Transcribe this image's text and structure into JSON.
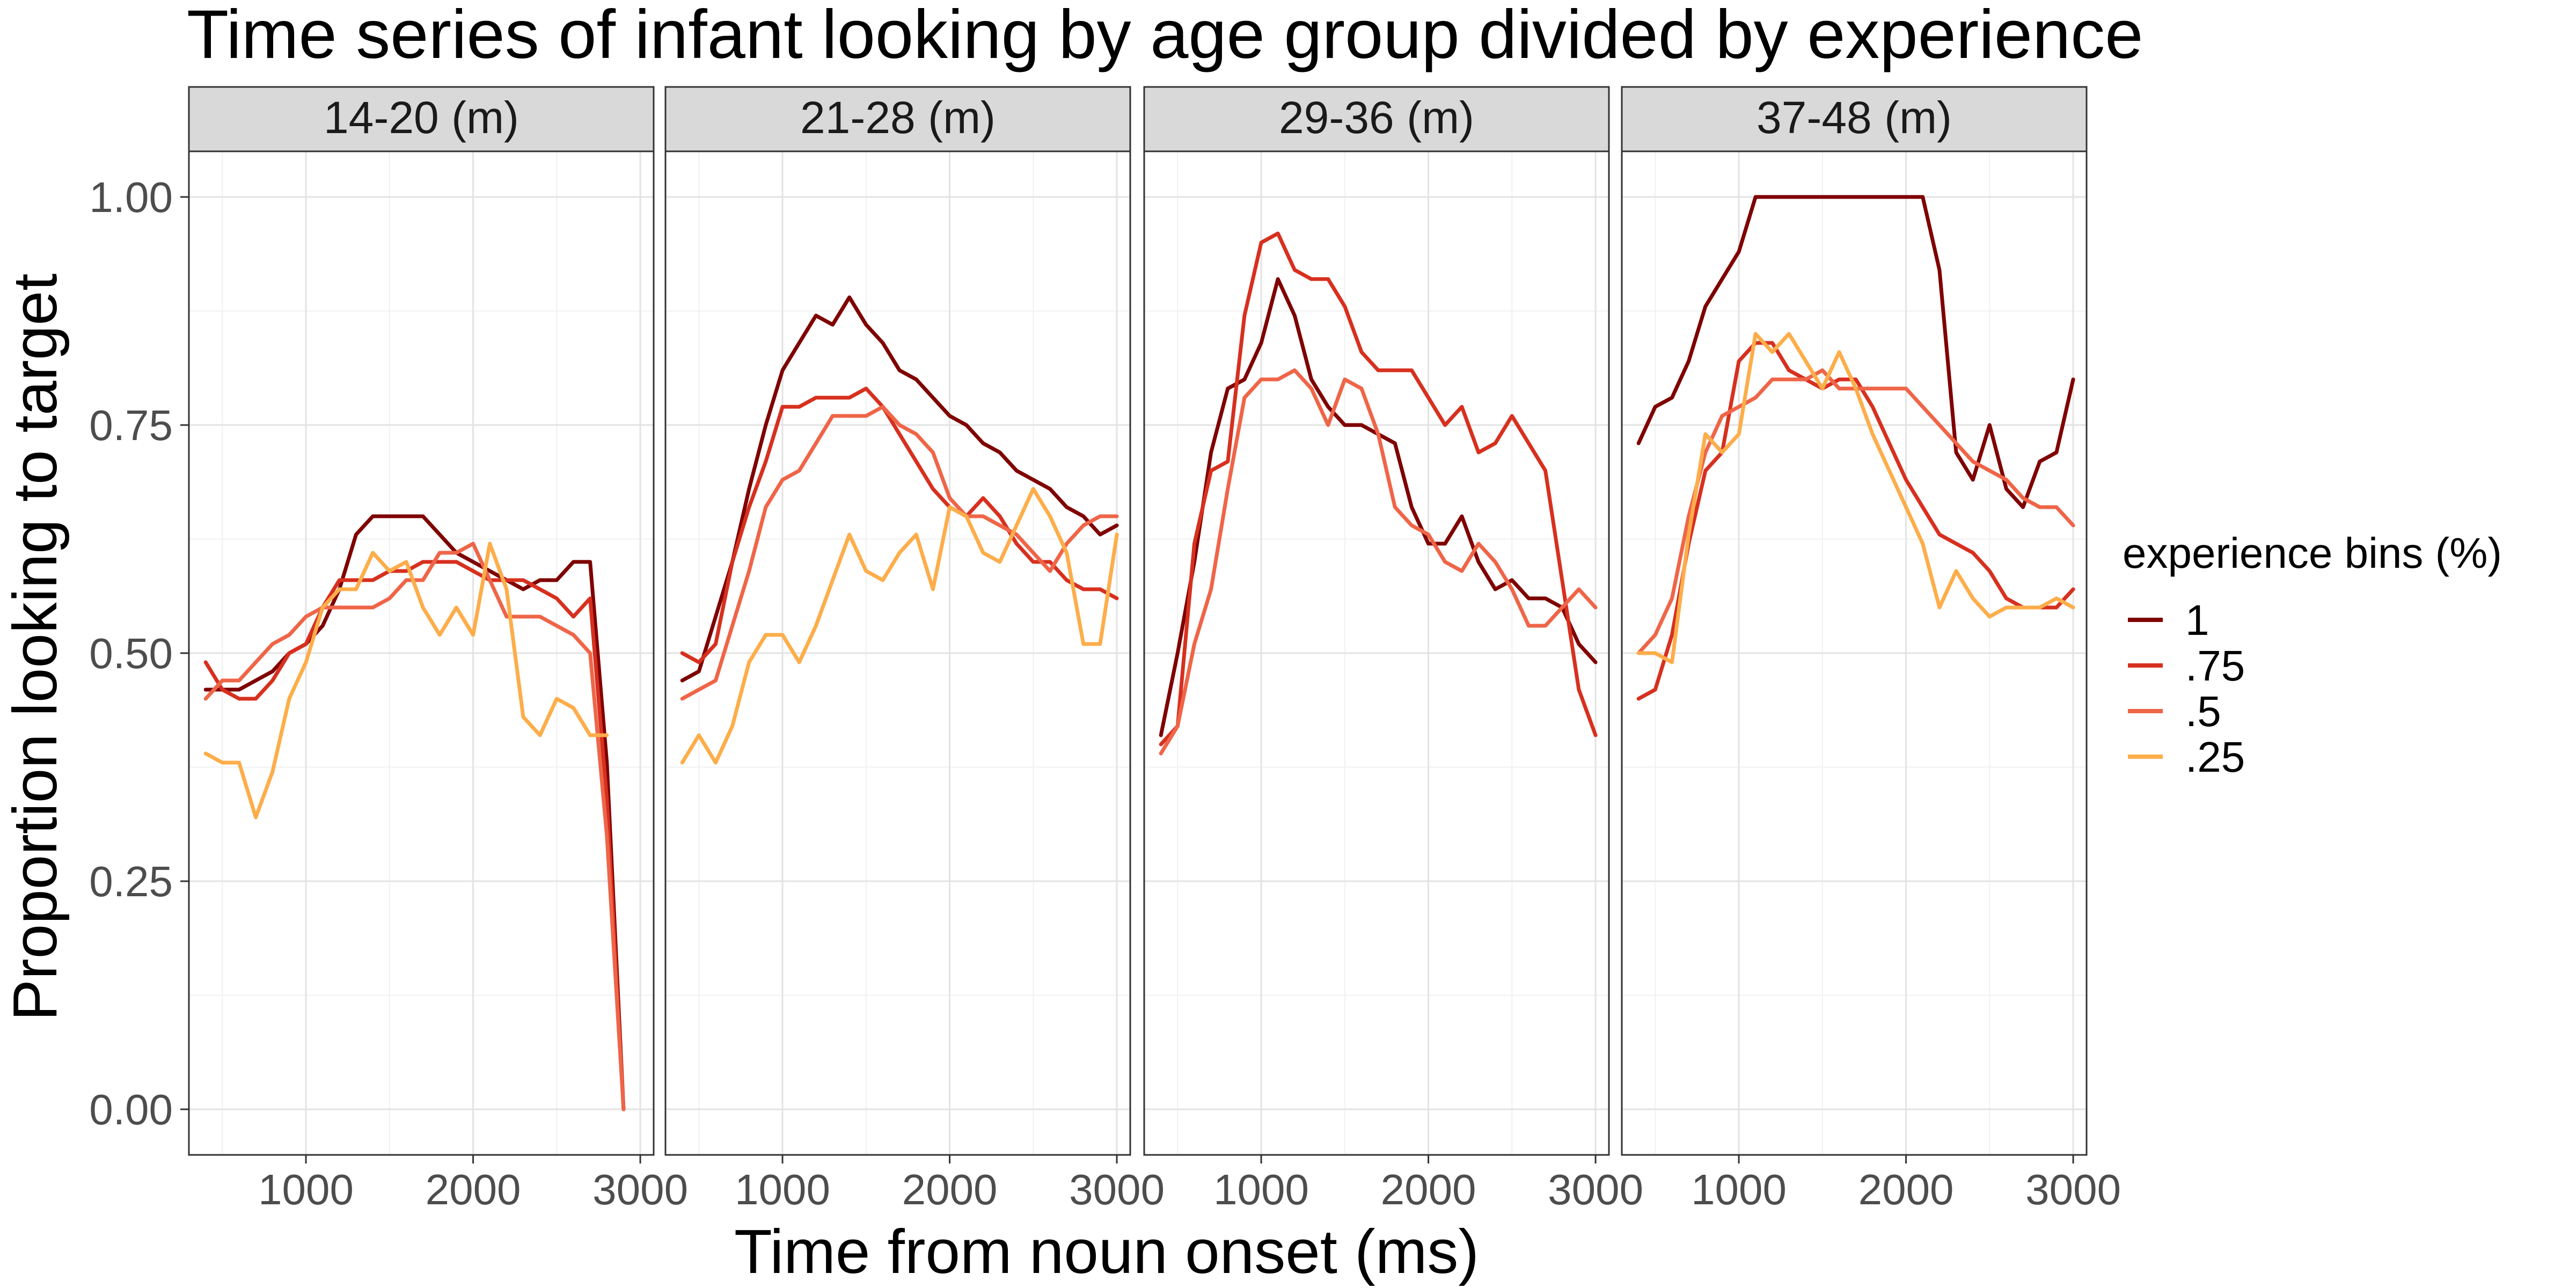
{
  "chart_data": {
    "type": "line",
    "title": "Time series of infant looking by age group divided by experience",
    "xlabel": "Time from noun onset (ms)",
    "ylabel": "Proportion looking to target",
    "xlim": [
      300,
      3080
    ],
    "ylim": [
      -0.05,
      1.05
    ],
    "x_ticks": [
      1000,
      2000,
      3000
    ],
    "x_tick_labels": [
      "1000",
      "2000",
      "3000"
    ],
    "y_ticks": [
      0,
      0.25,
      0.5,
      0.75,
      1
    ],
    "y_tick_labels": [
      "0.00",
      "0.25",
      "0.50",
      "0.75",
      "1.00"
    ],
    "grid": true,
    "legend": {
      "title": "experience bins (%)",
      "position": "right",
      "entries": [
        "1",
        ".75",
        ".5",
        ".25"
      ]
    },
    "series_colors": {
      "1": "#7f0000",
      ".75": "#d7301f",
      ".5": "#ef6548",
      ".25": "#fdad4a"
    },
    "panels": [
      {
        "strip": "14-20 (m)",
        "series": [
          {
            "name": "1",
            "x": [
              400,
              500,
              600,
              700,
              800,
              900,
              1000,
              1100,
              1200,
              1300,
              1400,
              1500,
              1600,
              1700,
              1800,
              1900,
              2000,
              2100,
              2200,
              2300,
              2400,
              2500,
              2600,
              2700,
              2800,
              2900
            ],
            "y": [
              0.46,
              0.46,
              0.46,
              0.47,
              0.48,
              0.5,
              0.51,
              0.53,
              0.57,
              0.63,
              0.65,
              0.65,
              0.65,
              0.65,
              0.63,
              0.61,
              0.6,
              0.59,
              0.58,
              0.57,
              0.58,
              0.58,
              0.6,
              0.6,
              0.38,
              0.0
            ]
          },
          {
            "name": ".75",
            "x": [
              400,
              500,
              600,
              700,
              800,
              900,
              1000,
              1100,
              1200,
              1300,
              1400,
              1500,
              1600,
              1700,
              1800,
              1900,
              2000,
              2100,
              2200,
              2300,
              2400,
              2500,
              2600,
              2700,
              2800,
              2900
            ],
            "y": [
              0.49,
              0.46,
              0.45,
              0.45,
              0.47,
              0.5,
              0.51,
              0.55,
              0.58,
              0.58,
              0.58,
              0.59,
              0.59,
              0.6,
              0.6,
              0.6,
              0.59,
              0.58,
              0.58,
              0.58,
              0.57,
              0.56,
              0.54,
              0.56,
              0.34,
              0.0
            ]
          },
          {
            "name": ".5",
            "x": [
              400,
              500,
              600,
              700,
              800,
              900,
              1000,
              1100,
              1200,
              1300,
              1400,
              1500,
              1600,
              1700,
              1800,
              1900,
              2000,
              2100,
              2200,
              2300,
              2400,
              2500,
              2600,
              2700,
              2800,
              2900
            ],
            "y": [
              0.45,
              0.47,
              0.47,
              0.49,
              0.51,
              0.52,
              0.54,
              0.55,
              0.55,
              0.55,
              0.55,
              0.56,
              0.58,
              0.58,
              0.61,
              0.61,
              0.62,
              0.58,
              0.54,
              0.54,
              0.54,
              0.53,
              0.52,
              0.5,
              0.3,
              0.0
            ]
          },
          {
            "name": ".25",
            "x": [
              400,
              500,
              600,
              700,
              800,
              900,
              1000,
              1100,
              1200,
              1300,
              1400,
              1500,
              1600,
              1700,
              1800,
              1900,
              2000,
              2100,
              2200,
              2300,
              2400,
              2500,
              2600,
              2700,
              2800
            ],
            "y": [
              0.39,
              0.38,
              0.38,
              0.32,
              0.37,
              0.45,
              0.49,
              0.55,
              0.57,
              0.57,
              0.61,
              0.59,
              0.6,
              0.55,
              0.52,
              0.55,
              0.52,
              0.62,
              0.57,
              0.43,
              0.41,
              0.45,
              0.44,
              0.41,
              0.41
            ]
          }
        ]
      },
      {
        "strip": "21-28 (m)",
        "series": [
          {
            "name": "1",
            "x": [
              400,
              500,
              600,
              700,
              800,
              900,
              1000,
              1100,
              1200,
              1300,
              1400,
              1500,
              1600,
              1700,
              1800,
              1900,
              2000,
              2100,
              2200,
              2300,
              2400,
              2500,
              2600,
              2700,
              2800,
              2900,
              3000
            ],
            "y": [
              0.47,
              0.48,
              0.54,
              0.6,
              0.68,
              0.75,
              0.81,
              0.84,
              0.87,
              0.86,
              0.89,
              0.86,
              0.84,
              0.81,
              0.8,
              0.78,
              0.76,
              0.75,
              0.73,
              0.72,
              0.7,
              0.69,
              0.68,
              0.66,
              0.65,
              0.63,
              0.64
            ]
          },
          {
            "name": ".75",
            "x": [
              400,
              500,
              600,
              700,
              800,
              900,
              1000,
              1100,
              1200,
              1300,
              1400,
              1500,
              1600,
              1700,
              1800,
              1900,
              2000,
              2100,
              2200,
              2300,
              2400,
              2500,
              2600,
              2700,
              2800,
              2900,
              3000
            ],
            "y": [
              0.5,
              0.49,
              0.51,
              0.6,
              0.66,
              0.71,
              0.77,
              0.77,
              0.78,
              0.78,
              0.78,
              0.79,
              0.77,
              0.74,
              0.71,
              0.68,
              0.66,
              0.65,
              0.67,
              0.65,
              0.62,
              0.6,
              0.6,
              0.58,
              0.57,
              0.57,
              0.56
            ]
          },
          {
            "name": ".5",
            "x": [
              400,
              500,
              600,
              700,
              800,
              900,
              1000,
              1100,
              1200,
              1300,
              1400,
              1500,
              1600,
              1700,
              1800,
              1900,
              2000,
              2100,
              2200,
              2300,
              2400,
              2500,
              2600,
              2700,
              2800,
              2900,
              3000
            ],
            "y": [
              0.45,
              0.46,
              0.47,
              0.53,
              0.59,
              0.66,
              0.69,
              0.7,
              0.73,
              0.76,
              0.76,
              0.76,
              0.77,
              0.75,
              0.74,
              0.72,
              0.67,
              0.65,
              0.65,
              0.64,
              0.63,
              0.61,
              0.59,
              0.62,
              0.64,
              0.65,
              0.65
            ]
          },
          {
            "name": ".25",
            "x": [
              400,
              500,
              600,
              700,
              800,
              900,
              1000,
              1100,
              1200,
              1300,
              1400,
              1500,
              1600,
              1700,
              1800,
              1900,
              2000,
              2100,
              2200,
              2300,
              2400,
              2500,
              2600,
              2700,
              2800,
              2900,
              3000
            ],
            "y": [
              0.38,
              0.41,
              0.38,
              0.42,
              0.49,
              0.52,
              0.52,
              0.49,
              0.53,
              0.58,
              0.63,
              0.59,
              0.58,
              0.61,
              0.63,
              0.57,
              0.66,
              0.65,
              0.61,
              0.6,
              0.64,
              0.68,
              0.65,
              0.61,
              0.51,
              0.51,
              0.63
            ]
          }
        ]
      },
      {
        "strip": "29-36 (m)",
        "series": [
          {
            "name": "1",
            "x": [
              400,
              500,
              600,
              700,
              800,
              900,
              1000,
              1100,
              1200,
              1300,
              1400,
              1500,
              1600,
              1700,
              1800,
              1900,
              2000,
              2100,
              2200,
              2300,
              2400,
              2500,
              2600,
              2700,
              2800,
              2900,
              3000
            ],
            "y": [
              0.41,
              0.5,
              0.6,
              0.72,
              0.79,
              0.8,
              0.84,
              0.91,
              0.87,
              0.8,
              0.77,
              0.75,
              0.75,
              0.74,
              0.73,
              0.66,
              0.62,
              0.62,
              0.65,
              0.6,
              0.57,
              0.58,
              0.56,
              0.56,
              0.55,
              0.51,
              0.49
            ]
          },
          {
            "name": ".75",
            "x": [
              400,
              500,
              600,
              700,
              800,
              900,
              1000,
              1100,
              1200,
              1300,
              1400,
              1500,
              1600,
              1700,
              1800,
              1900,
              2000,
              2100,
              2200,
              2300,
              2400,
              2500,
              2600,
              2700,
              2800,
              2900,
              3000
            ],
            "y": [
              0.4,
              0.42,
              0.62,
              0.7,
              0.71,
              0.87,
              0.95,
              0.96,
              0.92,
              0.91,
              0.91,
              0.88,
              0.83,
              0.81,
              0.81,
              0.81,
              0.78,
              0.75,
              0.77,
              0.72,
              0.73,
              0.76,
              0.73,
              0.7,
              0.58,
              0.46,
              0.41
            ]
          },
          {
            "name": ".5",
            "x": [
              400,
              500,
              600,
              700,
              800,
              900,
              1000,
              1100,
              1200,
              1300,
              1400,
              1500,
              1600,
              1700,
              1800,
              1900,
              2000,
              2100,
              2200,
              2300,
              2400,
              2500,
              2600,
              2700,
              2800,
              2900,
              3000
            ],
            "y": [
              0.39,
              0.42,
              0.51,
              0.57,
              0.68,
              0.78,
              0.8,
              0.8,
              0.81,
              0.79,
              0.75,
              0.8,
              0.79,
              0.74,
              0.66,
              0.64,
              0.63,
              0.6,
              0.59,
              0.62,
              0.6,
              0.57,
              0.53,
              0.53,
              0.55,
              0.57,
              0.55
            ]
          }
        ]
      },
      {
        "strip": "37-48 (m)",
        "series": [
          {
            "name": "1",
            "x": [
              400,
              500,
              600,
              700,
              800,
              900,
              1000,
              1100,
              1200,
              1300,
              1400,
              1500,
              1600,
              1700,
              1800,
              1900,
              2000,
              2100,
              2200,
              2300,
              2400,
              2500,
              2600,
              2700,
              2800,
              2900,
              3000
            ],
            "y": [
              0.73,
              0.77,
              0.78,
              0.82,
              0.88,
              0.91,
              0.94,
              1.0,
              1.0,
              1.0,
              1.0,
              1.0,
              1.0,
              1.0,
              1.0,
              1.0,
              1.0,
              1.0,
              0.92,
              0.72,
              0.69,
              0.75,
              0.68,
              0.66,
              0.71,
              0.72,
              0.8
            ]
          },
          {
            "name": ".75",
            "x": [
              400,
              500,
              600,
              700,
              800,
              900,
              1000,
              1100,
              1200,
              1300,
              1400,
              1500,
              1600,
              1700,
              1800,
              1900,
              2000,
              2100,
              2200,
              2300,
              2400,
              2500,
              2600,
              2700,
              2800,
              2900,
              3000
            ],
            "y": [
              0.45,
              0.46,
              0.52,
              0.62,
              0.7,
              0.72,
              0.82,
              0.84,
              0.84,
              0.81,
              0.8,
              0.79,
              0.8,
              0.8,
              0.77,
              0.73,
              0.69,
              0.66,
              0.63,
              0.62,
              0.61,
              0.59,
              0.56,
              0.55,
              0.55,
              0.55,
              0.57
            ]
          },
          {
            "name": ".5",
            "x": [
              400,
              500,
              600,
              700,
              800,
              900,
              1000,
              1100,
              1200,
              1300,
              1400,
              1500,
              1600,
              1700,
              1800,
              1900,
              2000,
              2100,
              2200,
              2300,
              2400,
              2500,
              2600,
              2700,
              2800,
              2900,
              3000
            ],
            "y": [
              0.5,
              0.52,
              0.56,
              0.65,
              0.72,
              0.76,
              0.77,
              0.78,
              0.8,
              0.8,
              0.8,
              0.81,
              0.79,
              0.79,
              0.79,
              0.79,
              0.79,
              0.77,
              0.75,
              0.73,
              0.71,
              0.7,
              0.69,
              0.67,
              0.66,
              0.66,
              0.64
            ]
          },
          {
            "name": ".25",
            "x": [
              400,
              500,
              600,
              700,
              800,
              900,
              1000,
              1100,
              1200,
              1300,
              1400,
              1500,
              1600,
              1700,
              1800,
              1900,
              2000,
              2100,
              2200,
              2300,
              2400,
              2500,
              2600,
              2700,
              2800,
              2900,
              3000
            ],
            "y": [
              0.5,
              0.5,
              0.49,
              0.63,
              0.74,
              0.72,
              0.74,
              0.85,
              0.83,
              0.85,
              0.82,
              0.79,
              0.83,
              0.79,
              0.74,
              0.7,
              0.66,
              0.62,
              0.55,
              0.59,
              0.56,
              0.54,
              0.55,
              0.55,
              0.55,
              0.56,
              0.55
            ]
          }
        ]
      }
    ]
  }
}
